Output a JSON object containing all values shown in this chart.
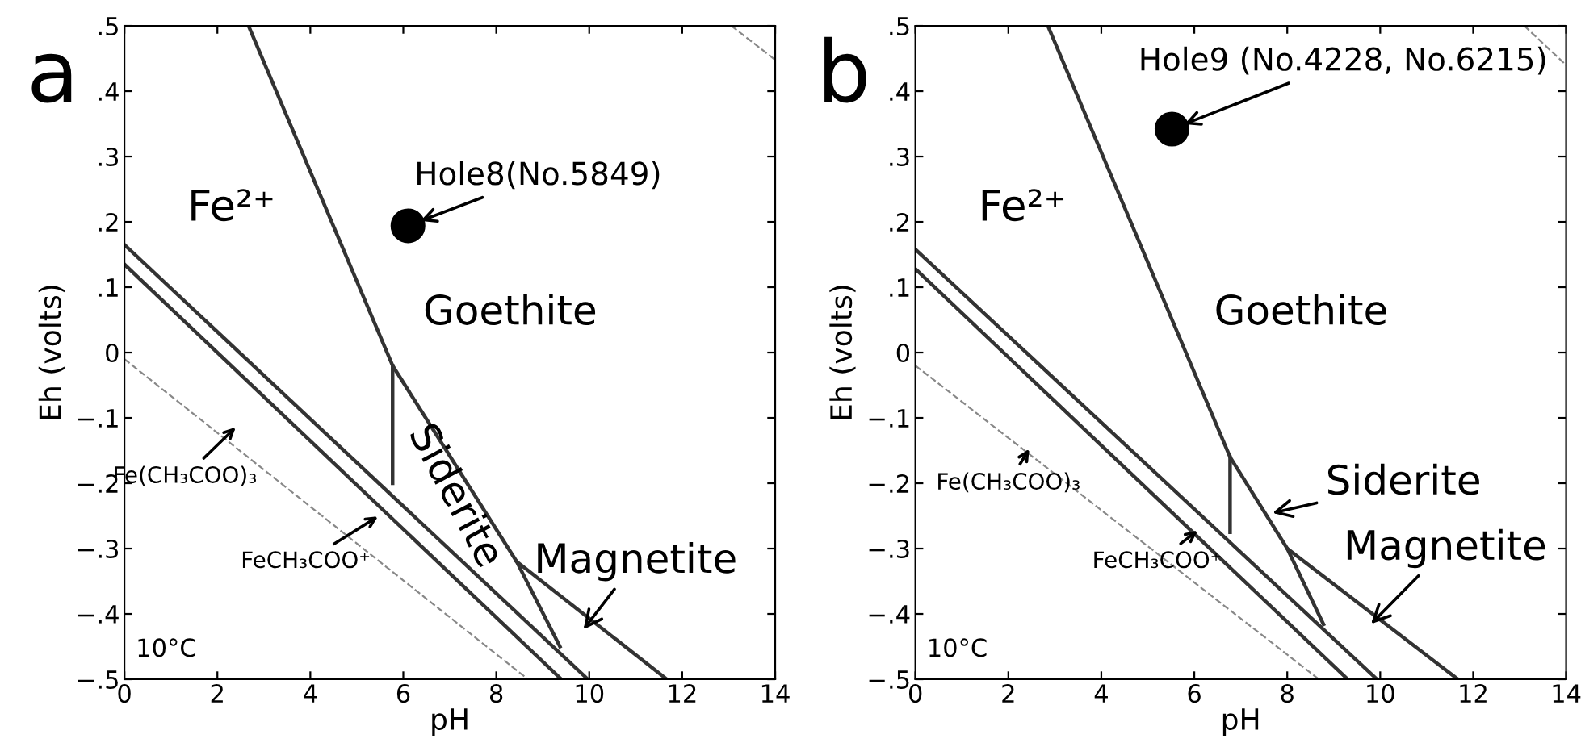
{
  "chart_data": [
    {
      "type": "line",
      "title": "a",
      "xlabel": "pH",
      "ylabel": "Eh (volts)",
      "xlim": [
        0,
        14
      ],
      "ylim": [
        -0.5,
        0.5
      ],
      "xticks": [
        0,
        2,
        4,
        6,
        8,
        10,
        12,
        14
      ],
      "yticks": [
        {
          "value": -0.5,
          "label": "−.5"
        },
        {
          "value": -0.4,
          "label": "−.4"
        },
        {
          "value": -0.3,
          "label": "−.3"
        },
        {
          "value": -0.2,
          "label": "−.2"
        },
        {
          "value": -0.1,
          "label": "−.1"
        },
        0,
        {
          "value": 0.1,
          "label": ".1"
        },
        {
          "value": 0.2,
          "label": ".2"
        },
        {
          "value": 0.3,
          "label": ".3"
        },
        {
          "value": 0.4,
          "label": ".4"
        },
        {
          "value": 0.5,
          "label": ".5"
        }
      ],
      "grid": false,
      "legend": false,
      "series": [
        {
          "color": "#333333",
          "x": [
            2.67,
            5.77,
            8.44,
            9.37
          ],
          "values": [
            0.5,
            -0.02,
            -0.32,
            -0.45
          ]
        },
        {
          "color": "#333333",
          "x": [
            8.44,
            11.67
          ],
          "values": [
            -0.32,
            -0.5
          ]
        },
        {
          "color": "#333333",
          "x": [
            5.77,
            5.77
          ],
          "values": [
            -0.02,
            -0.2
          ]
        },
        {
          "color": "#333333",
          "x": [
            0,
            9.97
          ],
          "values": [
            0.165,
            -0.5
          ]
        },
        {
          "color": "#333333",
          "x": [
            0,
            9.4
          ],
          "values": [
            0.135,
            -0.5
          ]
        },
        {
          "color": "#888888",
          "line_style": "dashed",
          "x": [
            0,
            8.68
          ],
          "values": [
            -0.01,
            -0.5
          ]
        },
        {
          "color": "#888888",
          "line_style": "dashed",
          "x": [
            13.06,
            14
          ],
          "values": [
            0.5,
            0.448
          ]
        },
        {
          "type": "scatter",
          "color": "#000000",
          "marker": "circle",
          "x": [
            6.1
          ],
          "values": [
            0.194
          ]
        }
      ],
      "annotations": [
        "Fe²⁺",
        "Goethite",
        {
          "text": "Hole8(No.5849)",
          "x": 6.1,
          "y": 0.194
        },
        "Siderite",
        "Magnetite",
        "Fe(CH₃COO)₃",
        "FeCH₃COO⁺",
        "10°C"
      ]
    },
    {
      "type": "line",
      "title": "b",
      "xlabel": "pH",
      "ylabel": "Eh (volts)",
      "xlim": [
        0,
        14
      ],
      "ylim": [
        -0.5,
        0.5
      ],
      "xticks": [
        0,
        2,
        4,
        6,
        8,
        10,
        12,
        14
      ],
      "yticks": [
        {
          "value": -0.5,
          "label": "−.5"
        },
        {
          "value": -0.4,
          "label": "−.4"
        },
        {
          "value": -0.3,
          "label": "−.3"
        },
        {
          "value": -0.2,
          "label": "−.2"
        },
        {
          "value": -0.1,
          "label": "−.1"
        },
        0,
        {
          "value": 0.1,
          "label": ".1"
        },
        {
          "value": 0.2,
          "label": ".2"
        },
        {
          "value": 0.3,
          "label": ".3"
        },
        {
          "value": 0.4,
          "label": ".4"
        },
        {
          "value": 0.5,
          "label": ".5"
        }
      ],
      "grid": false,
      "legend": false,
      "series": [
        {
          "color": "#333333",
          "x": [
            2.85,
            6.77,
            8.0,
            8.78
          ],
          "values": [
            0.5,
            -0.16,
            -0.3,
            -0.416
          ]
        },
        {
          "color": "#333333",
          "x": [
            8.0,
            11.67
          ],
          "values": [
            -0.3,
            -0.5
          ]
        },
        {
          "color": "#333333",
          "x": [
            6.77,
            6.77
          ],
          "values": [
            -0.16,
            -0.275
          ]
        },
        {
          "color": "#333333",
          "x": [
            0,
            9.93
          ],
          "values": [
            0.158,
            -0.5
          ]
        },
        {
          "color": "#333333",
          "x": [
            0,
            9.3
          ],
          "values": [
            0.128,
            -0.5
          ]
        },
        {
          "color": "#888888",
          "line_style": "dashed",
          "x": [
            0,
            8.68
          ],
          "values": [
            -0.02,
            -0.5
          ]
        },
        {
          "color": "#888888",
          "line_style": "dashed",
          "x": [
            13.1,
            14
          ],
          "values": [
            0.5,
            0.44
          ]
        },
        {
          "type": "scatter",
          "color": "#000000",
          "marker": "circle",
          "x": [
            5.52
          ],
          "values": [
            0.342
          ]
        }
      ],
      "annotations": [
        "Fe²⁺",
        "Goethite",
        {
          "text": "Hole9 (No.4228, No.6215)",
          "x": 5.52,
          "y": 0.342
        },
        "Siderite",
        "Magnetite",
        "Fe(CH₃COO)₃",
        "FeCH₃COO⁺",
        "10°C"
      ]
    }
  ]
}
